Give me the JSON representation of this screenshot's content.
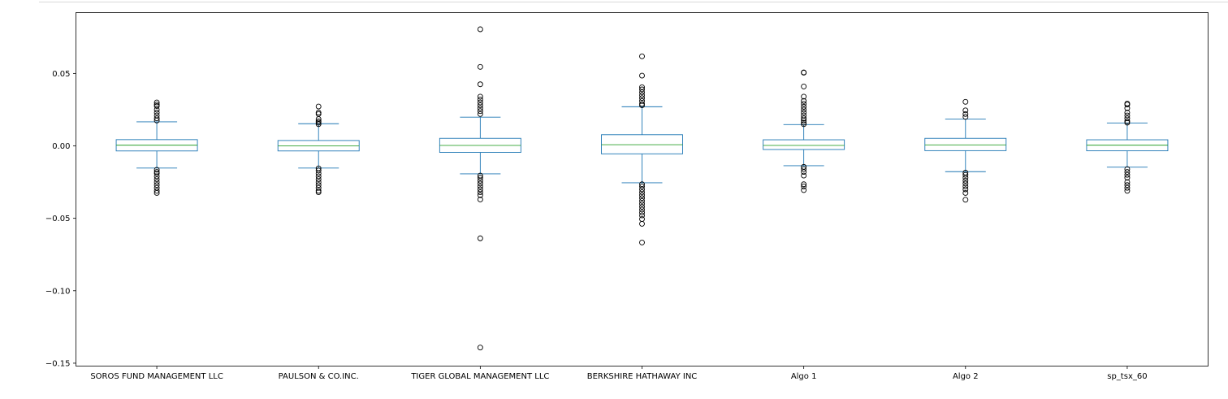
{
  "chart_data": {
    "type": "box",
    "title": "",
    "xlabel": "",
    "ylabel": "",
    "ylim": [
      -0.152,
      0.092
    ],
    "yticks": [
      {
        "value": 0.05,
        "label": "0.05"
      },
      {
        "value": 0.0,
        "label": "0.00"
      },
      {
        "value": -0.05,
        "label": "−0.05"
      },
      {
        "value": -0.1,
        "label": "−0.10"
      },
      {
        "value": -0.15,
        "label": "−0.15"
      }
    ],
    "grid": false,
    "colors": {
      "box": "#1f77b4",
      "median": "#2ca02c",
      "flier": "#000000",
      "axes": "#000000"
    },
    "categories": [
      "SOROS FUND MANAGEMENT LLC",
      "PAULSON & CO.INC.",
      "TIGER GLOBAL MANAGEMENT LLC",
      "BERKSHIRE HATHAWAY INC",
      "Algo 1",
      "Algo 2",
      "sp_tsx_60"
    ],
    "boxes": [
      {
        "q1": -0.0035,
        "median": 0.0005,
        "q3": 0.0043,
        "whisker_low": -0.0153,
        "whisker_high": 0.0166,
        "fliers": [
          0.03,
          0.0285,
          0.0275,
          0.025,
          0.023,
          0.021,
          0.019,
          0.0175,
          -0.0165,
          -0.018,
          -0.019,
          -0.021,
          -0.023,
          -0.025,
          -0.027,
          -0.029,
          -0.031,
          -0.0325
        ]
      },
      {
        "q1": -0.0035,
        "median": 0.0,
        "q3": 0.0037,
        "whisker_low": -0.0153,
        "whisker_high": 0.0153,
        "fliers": [
          0.0272,
          0.023,
          0.022,
          0.0185,
          0.017,
          0.016,
          0.015,
          -0.0155,
          -0.017,
          -0.019,
          -0.021,
          -0.023,
          -0.025,
          -0.027,
          -0.029,
          -0.031,
          -0.032
        ]
      },
      {
        "q1": -0.0045,
        "median": 0.0003,
        "q3": 0.0052,
        "whisker_low": -0.0193,
        "whisker_high": 0.0198,
        "fliers": [
          0.0805,
          0.0545,
          0.0425,
          0.034,
          0.032,
          0.03,
          0.028,
          0.026,
          0.024,
          0.022,
          -0.0205,
          -0.022,
          -0.024,
          -0.026,
          -0.028,
          -0.03,
          -0.032,
          -0.034,
          -0.037,
          -0.0638,
          -0.1392
        ]
      },
      {
        "q1": -0.0055,
        "median": 0.0008,
        "q3": 0.0077,
        "whisker_low": -0.0255,
        "whisker_high": 0.027,
        "fliers": [
          0.0618,
          0.0485,
          0.0405,
          0.039,
          0.037,
          0.035,
          0.033,
          0.031,
          0.029,
          0.028,
          -0.0265,
          -0.028,
          -0.03,
          -0.032,
          -0.034,
          -0.036,
          -0.038,
          -0.04,
          -0.042,
          -0.044,
          -0.046,
          -0.048,
          -0.0505,
          -0.0538,
          -0.0667
        ]
      },
      {
        "q1": -0.0025,
        "median": 0.0003,
        "q3": 0.0042,
        "whisker_low": -0.0137,
        "whisker_high": 0.0147,
        "fliers": [
          0.0507,
          0.0505,
          0.041,
          0.034,
          0.031,
          0.029,
          0.027,
          0.025,
          0.023,
          0.021,
          0.019,
          0.0175,
          0.016,
          0.015,
          -0.0145,
          -0.016,
          -0.018,
          -0.0205,
          -0.0265,
          -0.028,
          -0.0305
        ]
      },
      {
        "q1": -0.0033,
        "median": 0.0007,
        "q3": 0.0052,
        "whisker_low": -0.0178,
        "whisker_high": 0.0185,
        "fliers": [
          0.0304,
          0.0245,
          0.022,
          0.02,
          -0.0185,
          -0.02,
          -0.022,
          -0.024,
          -0.026,
          -0.028,
          -0.03,
          -0.0325,
          -0.0372
        ]
      },
      {
        "q1": -0.0034,
        "median": 0.0005,
        "q3": 0.0042,
        "whisker_low": -0.0147,
        "whisker_high": 0.0158,
        "fliers": [
          0.0292,
          0.0285,
          0.026,
          0.023,
          0.021,
          0.019,
          0.017,
          0.016,
          -0.016,
          -0.018,
          -0.02,
          -0.022,
          -0.025,
          -0.027,
          -0.029,
          -0.031
        ]
      }
    ]
  }
}
